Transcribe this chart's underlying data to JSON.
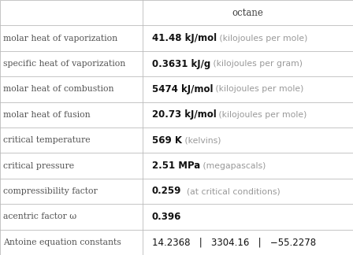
{
  "title": "octane",
  "rows": [
    {
      "label": "molar heat of vaporization",
      "value_bold": "41.48 kJ/mol",
      "value_light": " (kilojoules per mole)"
    },
    {
      "label": "specific heat of vaporization",
      "value_bold": "0.3631 kJ/g",
      "value_light": " (kilojoules per gram)"
    },
    {
      "label": "molar heat of combustion",
      "value_bold": "5474 kJ/mol",
      "value_light": " (kilojoules per mole)"
    },
    {
      "label": "molar heat of fusion",
      "value_bold": "20.73 kJ/mol",
      "value_light": " (kilojoules per mole)"
    },
    {
      "label": "critical temperature",
      "value_bold": "569 K",
      "value_light": " (kelvins)"
    },
    {
      "label": "critical pressure",
      "value_bold": "2.51 MPa",
      "value_light": " (megapascals)"
    },
    {
      "label": "compressibility factor",
      "value_bold": "0.259",
      "value_light": "  (at critical conditions)"
    },
    {
      "label": "acentric factor ω",
      "value_bold": "0.396",
      "value_light": ""
    },
    {
      "label": "Antoine equation constants",
      "value_bold": "14.2368   |   3304.16   |   −55.2278",
      "value_light": ""
    }
  ],
  "col_split": 0.405,
  "bg_color": "#ffffff",
  "header_text_color": "#444444",
  "label_text_color": "#555555",
  "value_bold_color": "#111111",
  "value_light_color": "#999999",
  "grid_color": "#bbbbbb",
  "header_font_size": 8.5,
  "label_font_size": 7.8,
  "value_bold_font_size": 8.5,
  "value_light_font_size": 7.8
}
